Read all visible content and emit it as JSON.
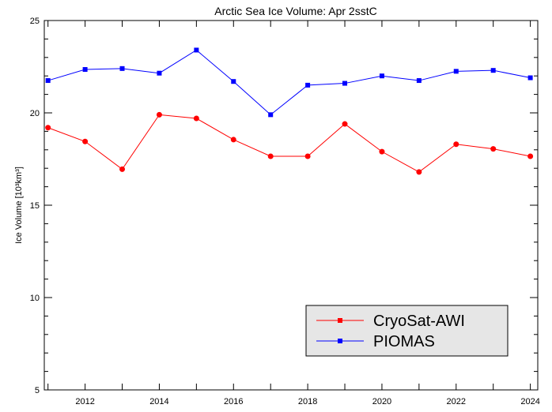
{
  "chart_data": {
    "type": "line",
    "title": "Arctic Sea Ice Volume: Apr 2sstC",
    "xlabel": "",
    "ylabel": "Ice Volume [10³km³]",
    "x": [
      2011,
      2012,
      2013,
      2014,
      2015,
      2016,
      2017,
      2018,
      2019,
      2020,
      2021,
      2022,
      2023,
      2024
    ],
    "xlim": [
      2010.9,
      2024.2
    ],
    "ylim": [
      5,
      25
    ],
    "xticks": [
      2012,
      2014,
      2016,
      2018,
      2020,
      2022,
      2024
    ],
    "yticks": [
      5,
      10,
      15,
      20,
      25
    ],
    "grid": false,
    "legend_position": "bottom-right",
    "series": [
      {
        "name": "CryoSat-AWI",
        "color": "#ff0000",
        "marker": "circle",
        "values": [
          19.2,
          18.45,
          16.95,
          19.9,
          19.7,
          18.55,
          17.65,
          17.65,
          19.4,
          17.9,
          16.8,
          18.3,
          18.05,
          17.65
        ]
      },
      {
        "name": "PIOMAS",
        "color": "#0000ff",
        "marker": "square",
        "values": [
          21.75,
          22.35,
          22.4,
          22.15,
          23.4,
          21.7,
          19.9,
          21.5,
          21.6,
          22.0,
          21.75,
          22.25,
          22.3,
          21.9
        ]
      }
    ]
  }
}
